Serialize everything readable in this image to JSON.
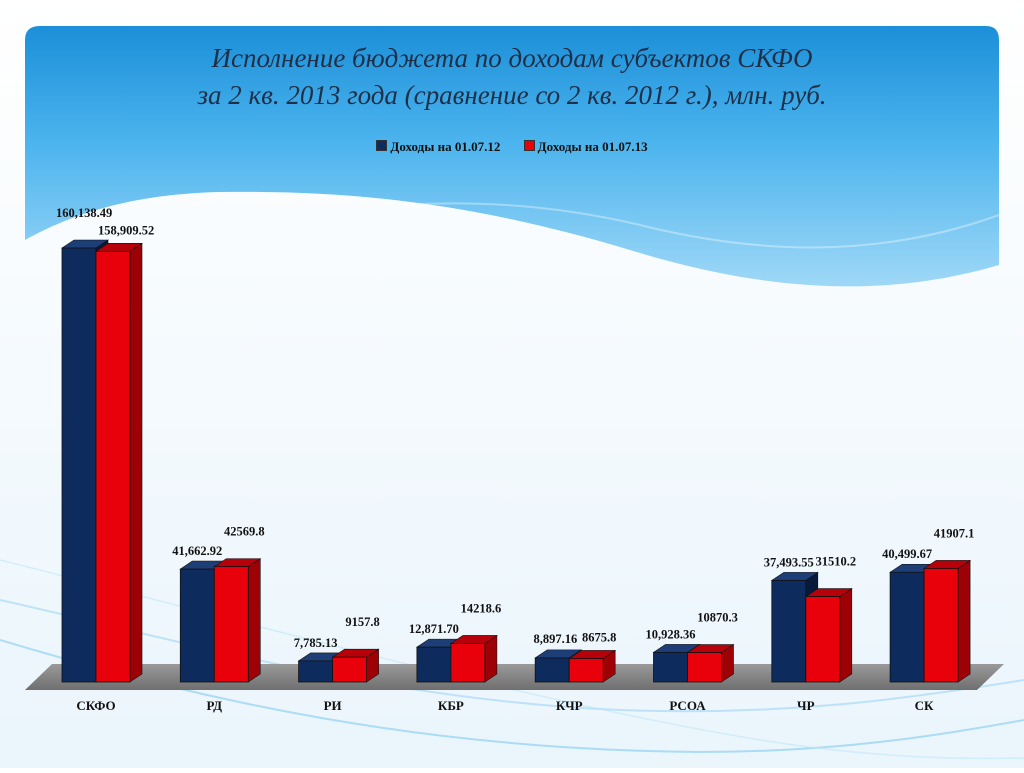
{
  "title": {
    "line1": "Исполнение бюджета по доходам субъектов СКФО",
    "line2": "за 2 кв. 2013 года (сравнение со 2 кв. 2012 г.), млн. руб."
  },
  "chart_data": {
    "type": "bar",
    "categories": [
      "СКФО",
      "РД",
      "РИ",
      "КБР",
      "КЧР",
      "РСОА",
      "ЧР",
      "СК"
    ],
    "series": [
      {
        "name": "Доходы на 01.07.12",
        "color": "#0d2b5c",
        "values": [
          160138.49,
          41662.92,
          7785.13,
          12871.7,
          8897.16,
          10928.36,
          37493.55,
          40499.67
        ],
        "labels": [
          "160,138.49",
          "41,662.92",
          "7,785.13",
          "12,871.70",
          "8,897.16",
          "10,928.36",
          "37,493.55",
          "40,499.67"
        ]
      },
      {
        "name": "Доходы на 01.07.13",
        "color": "#e8000a",
        "values": [
          158909.52,
          42569.8,
          9157.8,
          14218.6,
          8675.8,
          10870.3,
          31510.2,
          41907.1
        ],
        "labels": [
          "158,909.52",
          "42569.8",
          "9157.8",
          "14218.6",
          "8675.8",
          "10870.3",
          "31510.2",
          "41907.1"
        ]
      }
    ],
    "ylim": [
      0,
      160138.49
    ],
    "legend_position": "top-center",
    "grid": false,
    "three_d": true
  }
}
